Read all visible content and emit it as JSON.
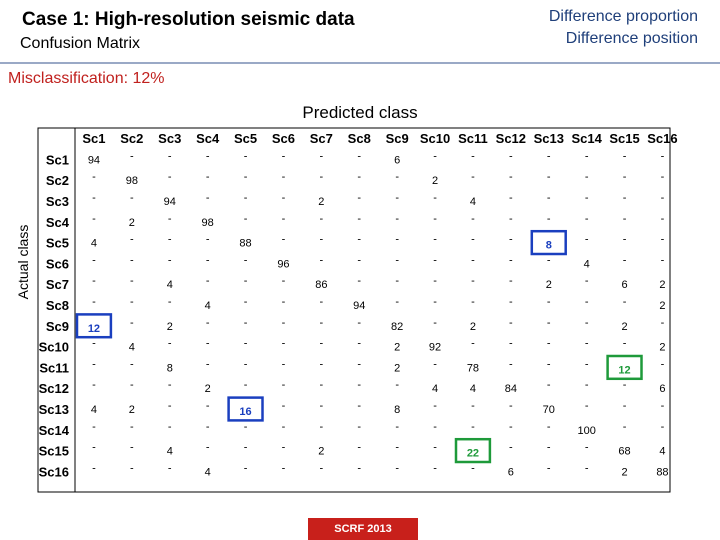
{
  "header": {
    "title": "Case 1: High-resolution seismic data",
    "subtitle": "Confusion Matrix",
    "legend_items": [
      "Difference proportion",
      "Difference position"
    ]
  },
  "misclassification": "Misclassification: 12%",
  "footer": "SCRF 2013",
  "chart_data": {
    "type": "table",
    "xlabel": "Predicted class",
    "ylabel": "Actual class",
    "columns": [
      "Sc1",
      "Sc2",
      "Sc3",
      "Sc4",
      "Sc5",
      "Sc6",
      "Sc7",
      "Sc8",
      "Sc9",
      "Sc10",
      "Sc11",
      "Sc12",
      "Sc13",
      "Sc14",
      "Sc15",
      "Sc16"
    ],
    "rows": [
      "Sc1",
      "Sc2",
      "Sc3",
      "Sc4",
      "Sc5",
      "Sc6",
      "Sc7",
      "Sc8",
      "Sc9",
      "Sc10",
      "Sc11",
      "Sc12",
      "Sc13",
      "Sc14",
      "Sc15",
      "Sc16"
    ],
    "cells": [
      [
        "94",
        "-",
        "-",
        "-",
        "-",
        "-",
        "-",
        "-",
        "6",
        "-",
        "-",
        "-",
        "-",
        "-",
        "-",
        "-"
      ],
      [
        "-",
        "98",
        "-",
        "-",
        "-",
        "-",
        "-",
        "-",
        "-",
        "2",
        "-",
        "-",
        "-",
        "-",
        "-",
        "-"
      ],
      [
        "-",
        "-",
        "94",
        "-",
        "-",
        "-",
        "2",
        "-",
        "-",
        "-",
        "4",
        "-",
        "-",
        "-",
        "-",
        "-"
      ],
      [
        "-",
        "2",
        "-",
        "98",
        "-",
        "-",
        "-",
        "-",
        "-",
        "-",
        "-",
        "-",
        "-",
        "-",
        "-",
        "-"
      ],
      [
        "4",
        "-",
        "-",
        "-",
        "88",
        "-",
        "-",
        "-",
        "-",
        "-",
        "-",
        "-",
        "8",
        "-",
        "-",
        "-"
      ],
      [
        "-",
        "-",
        "-",
        "-",
        "-",
        "96",
        "-",
        "-",
        "-",
        "-",
        "-",
        "-",
        "-",
        "4",
        "-",
        "-"
      ],
      [
        "-",
        "-",
        "4",
        "-",
        "-",
        "-",
        "86",
        "-",
        "-",
        "-",
        "-",
        "-",
        "2",
        "-",
        "6",
        "2"
      ],
      [
        "-",
        "-",
        "-",
        "4",
        "-",
        "-",
        "-",
        "94",
        "-",
        "-",
        "-",
        "-",
        "-",
        "-",
        "-",
        "2"
      ],
      [
        "12",
        "-",
        "2",
        "-",
        "-",
        "-",
        "-",
        "-",
        "82",
        "-",
        "2",
        "-",
        "-",
        "-",
        "2",
        "-"
      ],
      [
        "-",
        "4",
        "-",
        "-",
        "-",
        "-",
        "-",
        "-",
        "2",
        "92",
        "-",
        "-",
        "-",
        "-",
        "-",
        "2"
      ],
      [
        "-",
        "-",
        "8",
        "-",
        "-",
        "-",
        "-",
        "-",
        "2",
        "-",
        "78",
        "-",
        "-",
        "-",
        "12",
        "-"
      ],
      [
        "-",
        "-",
        "-",
        "2",
        "-",
        "-",
        "-",
        "-",
        "-",
        "4",
        "4",
        "84",
        "-",
        "-",
        "-",
        "6"
      ],
      [
        "4",
        "2",
        "-",
        "-",
        "16",
        "-",
        "-",
        "-",
        "8",
        "-",
        "-",
        "-",
        "70",
        "-",
        "-",
        "-"
      ],
      [
        "-",
        "-",
        "-",
        "-",
        "-",
        "-",
        "-",
        "-",
        "-",
        "-",
        "-",
        "-",
        "-",
        "100",
        "-",
        "-"
      ],
      [
        "-",
        "-",
        "4",
        "-",
        "-",
        "-",
        "2",
        "-",
        "-",
        "-",
        "22",
        "-",
        "-",
        "-",
        "68",
        "4"
      ],
      [
        "-",
        "-",
        "-",
        "4",
        "-",
        "-",
        "-",
        "-",
        "-",
        "-",
        "-",
        "6",
        "-",
        "-",
        "2",
        "88"
      ]
    ],
    "highlights": [
      {
        "row": 4,
        "col": 12,
        "kind": "Difference position",
        "color": "#1a3fbf"
      },
      {
        "row": 8,
        "col": 0,
        "kind": "Difference position",
        "color": "#1a3fbf"
      },
      {
        "row": 12,
        "col": 4,
        "kind": "Difference position",
        "color": "#1a3fbf"
      },
      {
        "row": 10,
        "col": 14,
        "kind": "Difference proportion",
        "color": "#1e9a3a"
      },
      {
        "row": 14,
        "col": 10,
        "kind": "Difference proportion",
        "color": "#1e9a3a"
      }
    ]
  }
}
